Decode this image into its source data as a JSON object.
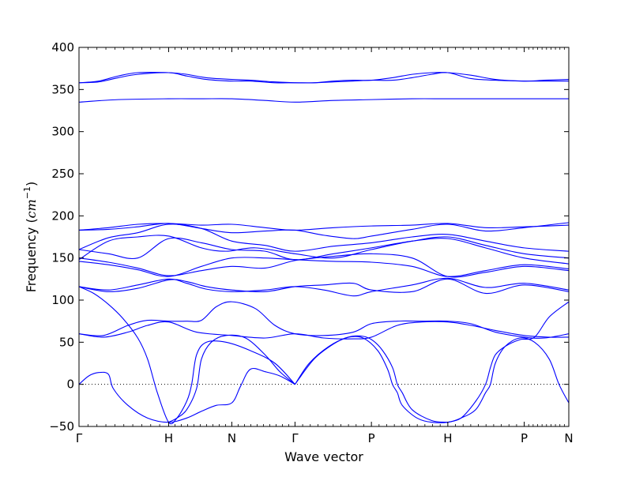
{
  "chart_data": {
    "type": "line",
    "xlabel": "Wave vector",
    "ylabel_prefix": "Frequency (",
    "ylabel_unit": "cm",
    "ylabel_exp": "−1",
    "ylabel_suffix": ")",
    "ylim": [
      -50,
      400
    ],
    "yticks": [
      -50,
      0,
      50,
      100,
      150,
      200,
      250,
      300,
      350,
      400
    ],
    "ytick_labels": [
      "−50",
      "0",
      "50",
      "100",
      "150",
      "200",
      "250",
      "300",
      "350",
      "400"
    ],
    "xlim": [
      0,
      1
    ],
    "xticks": [
      {
        "label": "Γ",
        "x": 0.0
      },
      {
        "label": "H",
        "x": 0.183
      },
      {
        "label": "N",
        "x": 0.312
      },
      {
        "label": "Γ",
        "x": 0.441
      },
      {
        "label": "P",
        "x": 0.597
      },
      {
        "label": "H",
        "x": 0.753
      },
      {
        "label": "P",
        "x": 0.909
      },
      {
        "label": "N",
        "x": 1.0
      }
    ],
    "minor_ticks_per_segment": 10,
    "zero_line": true,
    "line_color": "#0000ff",
    "series": [
      {
        "x": [
          0,
          0.04,
          0.08,
          0.12,
          0.183,
          0.22,
          0.26,
          0.312,
          0.35,
          0.4,
          0.441,
          0.48,
          0.52,
          0.56,
          0.597,
          0.64,
          0.68,
          0.72,
          0.753,
          0.8,
          0.85,
          0.909,
          0.95,
          1.0
        ],
        "values": [
          358,
          360,
          366,
          370,
          370,
          368,
          364,
          362,
          361,
          359,
          358,
          358,
          360,
          361,
          361,
          364,
          368,
          370,
          370,
          367,
          362,
          360,
          361,
          362
        ]
      },
      {
        "x": [
          0,
          0.04,
          0.08,
          0.12,
          0.183,
          0.22,
          0.26,
          0.312,
          0.35,
          0.4,
          0.441,
          0.48,
          0.52,
          0.56,
          0.597,
          0.64,
          0.68,
          0.72,
          0.753,
          0.8,
          0.85,
          0.909,
          0.95,
          1.0
        ],
        "values": [
          358,
          359,
          364,
          368,
          370,
          366,
          362,
          360,
          360,
          358,
          358,
          358,
          359,
          360,
          361,
          361,
          364,
          368,
          370,
          363,
          361,
          360,
          360,
          360
        ]
      },
      {
        "x": [
          0,
          0.08,
          0.183,
          0.25,
          0.312,
          0.38,
          0.441,
          0.52,
          0.597,
          0.68,
          0.753,
          0.85,
          0.909,
          1.0
        ],
        "values": [
          335,
          338,
          339,
          339,
          339,
          337,
          335,
          337,
          338,
          339,
          339,
          339,
          339,
          339
        ]
      },
      {
        "x": [
          0,
          0.06,
          0.12,
          0.183,
          0.25,
          0.312,
          0.38,
          0.441,
          0.52,
          0.597,
          0.68,
          0.753,
          0.83,
          0.909,
          1.0
        ],
        "values": [
          183,
          186,
          190,
          191,
          189,
          190,
          186,
          183,
          186,
          188,
          189,
          191,
          186,
          187,
          189
        ]
      },
      {
        "x": [
          0,
          0.06,
          0.12,
          0.183,
          0.25,
          0.312,
          0.38,
          0.441,
          0.5,
          0.56,
          0.597,
          0.68,
          0.753,
          0.83,
          0.909,
          1.0
        ],
        "values": [
          183,
          184,
          187,
          191,
          185,
          180,
          182,
          183,
          177,
          173,
          176,
          184,
          190,
          182,
          186,
          192
        ]
      },
      {
        "x": [
          0,
          0.06,
          0.12,
          0.183,
          0.25,
          0.312,
          0.38,
          0.441,
          0.52,
          0.597,
          0.68,
          0.753,
          0.83,
          0.909,
          1.0
        ],
        "values": [
          160,
          174,
          180,
          190,
          185,
          170,
          165,
          158,
          164,
          168,
          175,
          178,
          170,
          162,
          158
        ]
      },
      {
        "x": [
          0,
          0.06,
          0.12,
          0.183,
          0.25,
          0.3,
          0.36,
          0.441,
          0.52,
          0.597,
          0.68,
          0.753,
          0.83,
          0.909,
          1.0
        ],
        "values": [
          148,
          170,
          175,
          176,
          162,
          158,
          162,
          155,
          150,
          160,
          170,
          175,
          165,
          155,
          150
        ]
      },
      {
        "x": [
          0,
          0.06,
          0.12,
          0.183,
          0.25,
          0.312,
          0.38,
          0.441,
          0.52,
          0.597,
          0.68,
          0.753,
          0.83,
          0.909,
          1.0
        ],
        "values": [
          160,
          155,
          150,
          173,
          168,
          160,
          158,
          148,
          155,
          162,
          170,
          173,
          162,
          150,
          143
        ]
      },
      {
        "x": [
          0,
          0.06,
          0.12,
          0.183,
          0.25,
          0.312,
          0.38,
          0.441,
          0.52,
          0.597,
          0.68,
          0.753,
          0.83,
          0.909,
          1.0
        ],
        "values": [
          146,
          142,
          136,
          128,
          140,
          150,
          150,
          148,
          146,
          145,
          140,
          128,
          135,
          142,
          137
        ]
      },
      {
        "x": [
          0,
          0.06,
          0.12,
          0.183,
          0.25,
          0.312,
          0.38,
          0.441,
          0.52,
          0.597,
          0.68,
          0.753,
          0.83,
          0.909,
          1.0
        ],
        "values": [
          150,
          145,
          138,
          129,
          135,
          140,
          138,
          147,
          152,
          155,
          150,
          128,
          133,
          140,
          135
        ]
      },
      {
        "x": [
          0,
          0.06,
          0.12,
          0.183,
          0.22,
          0.26,
          0.312,
          0.38,
          0.441,
          0.5,
          0.56,
          0.597,
          0.68,
          0.753,
          0.83,
          0.909,
          1.0
        ],
        "values": [
          116,
          112,
          118,
          125,
          120,
          113,
          110,
          112,
          116,
          112,
          105,
          110,
          118,
          126,
          115,
          120,
          112
        ]
      },
      {
        "x": [
          0,
          0.06,
          0.12,
          0.183,
          0.22,
          0.26,
          0.312,
          0.38,
          0.441,
          0.5,
          0.56,
          0.597,
          0.68,
          0.753,
          0.83,
          0.909,
          1.0
        ],
        "values": [
          116,
          110,
          114,
          124,
          122,
          116,
          112,
          110,
          116,
          118,
          120,
          112,
          110,
          125,
          108,
          118,
          110
        ]
      },
      {
        "x": [
          0,
          0.05,
          0.1,
          0.14,
          0.183,
          0.22,
          0.25,
          0.28,
          0.312,
          0.36,
          0.4,
          0.441,
          0.5,
          0.56,
          0.597,
          0.65,
          0.7,
          0.753,
          0.8,
          0.85,
          0.909,
          0.95,
          1.0
        ],
        "values": [
          60,
          58,
          70,
          76,
          75,
          75,
          76,
          92,
          98,
          90,
          70,
          60,
          58,
          62,
          72,
          75,
          75,
          75,
          72,
          62,
          56,
          55,
          60
        ]
      },
      {
        "x": [
          0,
          0.05,
          0.1,
          0.14,
          0.183,
          0.24,
          0.312,
          0.38,
          0.441,
          0.5,
          0.56,
          0.597,
          0.65,
          0.7,
          0.753,
          0.8,
          0.85,
          0.909,
          0.96,
          1.0
        ],
        "values": [
          60,
          56,
          62,
          70,
          74,
          62,
          58,
          55,
          60,
          55,
          54,
          56,
          70,
          74,
          74,
          70,
          64,
          58,
          56,
          56
        ]
      },
      {
        "x": [
          0,
          0.02,
          0.04,
          0.06,
          0.07,
          0.1,
          0.14,
          0.183,
          0.22,
          0.25,
          0.28,
          0.312,
          0.33,
          0.35,
          0.38,
          0.41,
          0.441
        ],
        "values": [
          0,
          10,
          14,
          12,
          -5,
          -25,
          -40,
          -45,
          -40,
          -32,
          -25,
          -22,
          -2,
          18,
          15,
          10,
          0
        ]
      },
      {
        "x": [
          0,
          0.03,
          0.06,
          0.09,
          0.12,
          0.14,
          0.16,
          0.183,
          0.2,
          0.22,
          0.23,
          0.24,
          0.26,
          0.3,
          0.35,
          0.4,
          0.441
        ],
        "values": [
          116,
          108,
          95,
          78,
          55,
          30,
          -10,
          -45,
          -40,
          -20,
          0,
          35,
          50,
          50,
          40,
          25,
          0
        ]
      },
      {
        "x": [
          0.183,
          0.2,
          0.22,
          0.24,
          0.25,
          0.27,
          0.3,
          0.34,
          0.38,
          0.41,
          0.441
        ],
        "values": [
          -45,
          -40,
          -30,
          -5,
          30,
          50,
          58,
          55,
          35,
          15,
          0
        ]
      },
      {
        "x": [
          0.441,
          0.48,
          0.52,
          0.55,
          0.58,
          0.61,
          0.63,
          0.64,
          0.65,
          0.66,
          0.69,
          0.72,
          0.753,
          0.78,
          0.81,
          0.83,
          0.84,
          0.85,
          0.87,
          0.9,
          0.93,
          0.96,
          0.98,
          1.0
        ],
        "values": [
          0,
          30,
          48,
          56,
          55,
          40,
          18,
          0,
          -10,
          -25,
          -40,
          -45,
          -45,
          -40,
          -30,
          -10,
          0,
          25,
          45,
          55,
          50,
          30,
          0,
          -22
        ]
      },
      {
        "x": [
          0.441,
          0.47,
          0.51,
          0.55,
          0.58,
          0.6,
          0.62,
          0.64,
          0.65,
          0.66,
          0.68,
          0.72,
          0.753
        ],
        "values": [
          0,
          25,
          45,
          56,
          57,
          52,
          40,
          20,
          0,
          -10,
          -30,
          -43,
          -45
        ]
      },
      {
        "x": [
          0.753,
          0.78,
          0.81,
          0.83,
          0.84,
          0.85,
          0.87,
          0.9,
          0.93,
          0.96,
          1.0
        ],
        "values": [
          -45,
          -40,
          -20,
          0,
          20,
          35,
          45,
          53,
          56,
          80,
          98
        ]
      }
    ]
  }
}
